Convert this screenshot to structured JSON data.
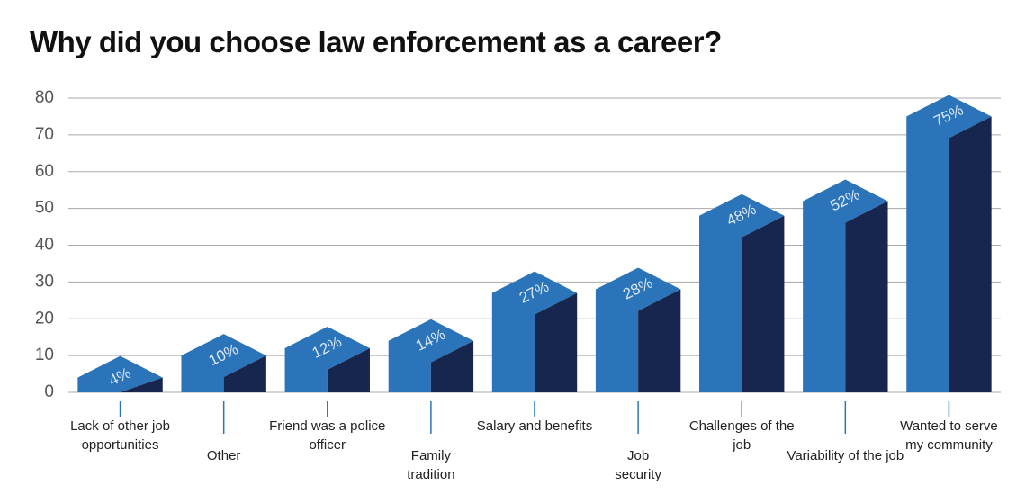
{
  "chart_data": {
    "type": "bar3d",
    "title": "Why did you choose law enforcement as a career?",
    "categories": [
      "Lack of other job opportunities",
      "Other",
      "Friend was a police officer",
      "Family tradition",
      "Salary and benefits",
      "Job security",
      "Challenges of the job",
      "Variability of the job",
      "Wanted to serve my community"
    ],
    "values": [
      4,
      10,
      12,
      14,
      27,
      28,
      48,
      52,
      75
    ],
    "value_labels": [
      "4%",
      "10%",
      "12%",
      "14%",
      "27%",
      "28%",
      "48%",
      "52%",
      "75%"
    ],
    "color": "#2b74b9",
    "shade_color": "#16264f",
    "ylim": [
      0,
      80
    ],
    "yticks": [
      0,
      10,
      20,
      30,
      40,
      50,
      60,
      70,
      80
    ],
    "grid": true
  }
}
